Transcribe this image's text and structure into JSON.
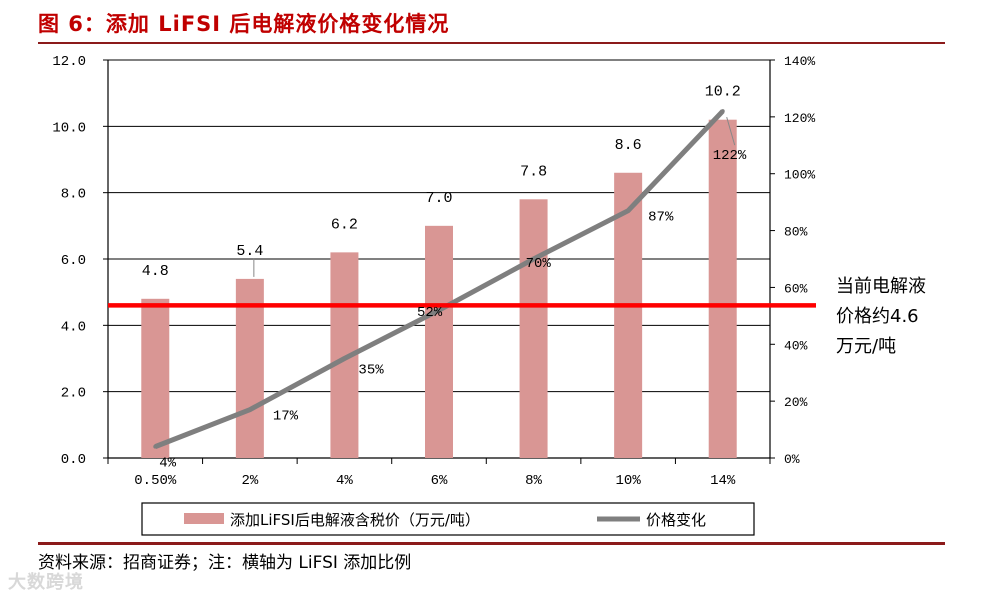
{
  "figure": {
    "title": "图 6：添加 LiFSI 后电解液价格变化情况",
    "source": "资料来源：招商证券；注：横轴为 LiFSI 添加比例",
    "watermark": "大数跨境"
  },
  "colors": {
    "bar": "#d99694",
    "line": "#7f7f7f",
    "reference": "#ff0000",
    "title": "#c00000"
  },
  "chart_data": {
    "type": "bar",
    "title": "",
    "categories": [
      "0.50%",
      "2%",
      "4%",
      "6%",
      "8%",
      "10%",
      "14%"
    ],
    "series": [
      {
        "name": "添加LiFSI后电解液含税价（万元/吨）",
        "axis": "left",
        "type": "bar",
        "values": [
          4.8,
          5.4,
          6.2,
          7.0,
          7.8,
          8.6,
          10.2
        ],
        "labels": [
          "4.8",
          "5.4",
          "6.2",
          "7.0",
          "7.8",
          "8.6",
          "10.2"
        ]
      },
      {
        "name": "价格变化",
        "axis": "right",
        "type": "line",
        "values": [
          4,
          17,
          35,
          52,
          70,
          87,
          122
        ],
        "labels": [
          "4%",
          "17%",
          "35%",
          "52%",
          "70%",
          "87%",
          "122%"
        ]
      }
    ],
    "y_left": {
      "ylim": [
        0,
        12
      ],
      "ticks": [
        "0.0",
        "2.0",
        "4.0",
        "6.0",
        "8.0",
        "10.0",
        "12.0"
      ]
    },
    "y_right": {
      "ylim": [
        0,
        140
      ],
      "ticks": [
        "0%",
        "20%",
        "40%",
        "60%",
        "80%",
        "100%",
        "120%",
        "140%"
      ]
    },
    "grid": true,
    "reference_line": {
      "value": 4.6,
      "axis": "left",
      "annotation": [
        "当前电解液",
        "价格约4.6",
        "万元/吨"
      ]
    },
    "legend": {
      "position": "bottom"
    }
  }
}
